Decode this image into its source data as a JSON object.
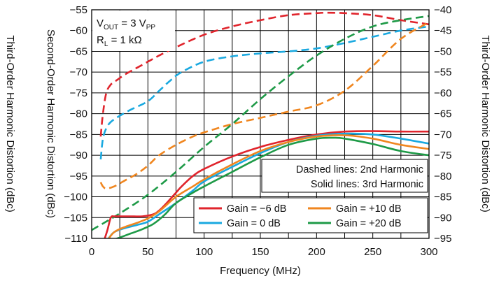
{
  "chart_data": {
    "type": "line",
    "xlabel": "Frequency (MHz)",
    "ylabel_left": "Second-Order Harmonic Distortion (dBc)",
    "ylabel_right_outer": "Third-Order Harmonic Distortion (dBc)",
    "ylabel_left_outer": "Third-Order Harmonic Distortion (dBc)",
    "xlim": [
      0,
      300
    ],
    "ylim_left": [
      -110,
      -55
    ],
    "ylim_right": [
      -95,
      -40
    ],
    "x_ticks": [
      0,
      50,
      100,
      150,
      200,
      250,
      300
    ],
    "x_tick_labels": [
      "0",
      "50",
      "100",
      "150",
      "200",
      "250",
      "300"
    ],
    "y_ticks_left": [
      -55,
      -60,
      -65,
      -70,
      -75,
      -80,
      -85,
      -90,
      -95,
      -100,
      -105,
      -110
    ],
    "y_tick_labels_left": [
      "−55",
      "−60",
      "−65",
      "−70",
      "−75",
      "−80",
      "−85",
      "−90",
      "−95",
      "−100",
      "−105",
      "−110"
    ],
    "y_ticks_right": [
      -40,
      -45,
      -50,
      -55,
      -60,
      -65,
      -70,
      -75,
      -80,
      -85,
      -90,
      -95
    ],
    "y_tick_labels_right": [
      "−40",
      "−45",
      "−50",
      "−55",
      "−60",
      "−65",
      "−70",
      "−75",
      "−80",
      "−85",
      "−90",
      "−95"
    ],
    "grid": true,
    "legend_placement": "bottom-right",
    "conditions": {
      "vout_main": "V",
      "vout_sub": "OUT",
      "vout_val": " = 3 V",
      "vout_unit_sub": "PP",
      "rl_main": "R",
      "rl_sub": "L",
      "rl_val": " = 1 kΩ"
    },
    "line_style_note": [
      "Dashed lines: 2nd Harmonic",
      "Solid lines: 3rd Harmonic"
    ],
    "series": [
      {
        "name": "Gain = −6 dB",
        "color": "#e0242c",
        "harmonic": "2nd",
        "axis": "left",
        "x": [
          8,
          10,
          13,
          17,
          22,
          30,
          40,
          50,
          60,
          75,
          100,
          125,
          150,
          175,
          200,
          210,
          225,
          250,
          275,
          300
        ],
        "y": [
          -85.5,
          -80,
          -75,
          -73,
          -72,
          -70.5,
          -69,
          -67.5,
          -66,
          -64,
          -61,
          -59,
          -57.5,
          -56.3,
          -55.8,
          -55.7,
          -55.8,
          -56.3,
          -57.5,
          -58.5
        ]
      },
      {
        "name": "Gain = 0 dB",
        "color": "#1aa9e0",
        "harmonic": "2nd",
        "axis": "left",
        "x": [
          8,
          10,
          13,
          17,
          25,
          35,
          50,
          60,
          70,
          80,
          100,
          125,
          150,
          175,
          200,
          225,
          250,
          275,
          300
        ],
        "y": [
          -91,
          -86,
          -83.5,
          -82,
          -80.5,
          -79,
          -77,
          -74.5,
          -72,
          -70,
          -67.5,
          -66.2,
          -65.5,
          -65,
          -64.3,
          -63,
          -61.5,
          -60,
          -59
        ]
      },
      {
        "name": "Gain = +10 dB",
        "color": "#f0861f",
        "harmonic": "2nd",
        "axis": "left",
        "x": [
          8,
          10,
          13,
          20,
          30,
          40,
          50,
          60,
          75,
          90,
          100,
          125,
          150,
          175,
          200,
          225,
          250,
          275,
          300
        ],
        "y": [
          -96.5,
          -97.5,
          -98,
          -97.5,
          -96,
          -94.5,
          -92.5,
          -90,
          -87.5,
          -85.5,
          -84.5,
          -82.5,
          -81,
          -79.5,
          -78,
          -74.5,
          -68.5,
          -62,
          -58
        ]
      },
      {
        "name": "Gain = +20 dB",
        "color": "#1e9a47",
        "harmonic": "2nd",
        "axis": "left",
        "x": [
          0,
          25,
          50,
          75,
          100,
          125,
          150,
          175,
          200,
          225,
          250,
          275,
          300
        ],
        "y": [
          -108,
          -104,
          -99.5,
          -94,
          -88,
          -82.5,
          -76.5,
          -71,
          -66,
          -62,
          -59,
          -57.5,
          -56.5
        ]
      },
      {
        "name": "Gain = −6 dB",
        "color": "#e0242c",
        "harmonic": "3rd",
        "axis": "right",
        "x": [
          11,
          14,
          17,
          20,
          25,
          30,
          35,
          45,
          55,
          60,
          65,
          70,
          75,
          80,
          90,
          100,
          125,
          150,
          175,
          200,
          225,
          250,
          275,
          300
        ],
        "y": [
          -95.5,
          -93,
          -90,
          -89.7,
          -89.7,
          -89.7,
          -89.7,
          -89.7,
          -89.2,
          -88.3,
          -87,
          -85.5,
          -84,
          -82.5,
          -80,
          -78.3,
          -75.3,
          -73,
          -71.3,
          -70,
          -69.3,
          -69.2,
          -69.3,
          -69.3
        ]
      },
      {
        "name": "Gain = 0 dB",
        "color": "#1aa9e0",
        "harmonic": "3rd",
        "axis": "right",
        "x": [
          12,
          15,
          20,
          30,
          40,
          50,
          60,
          75,
          90,
          100,
          125,
          150,
          175,
          200,
          225,
          250,
          275,
          300
        ],
        "y": [
          -95.5,
          -95,
          -93.5,
          -92.5,
          -91.8,
          -91,
          -89.2,
          -86.5,
          -83.5,
          -81.3,
          -77.8,
          -74.5,
          -71.8,
          -70.3,
          -69.8,
          -70,
          -71,
          -72.2
        ]
      },
      {
        "name": "Gain = +10 dB",
        "color": "#f0861f",
        "harmonic": "3rd",
        "axis": "right",
        "x": [
          14,
          20,
          30,
          40,
          50,
          60,
          75,
          90,
          100,
          125,
          150,
          175,
          200,
          225,
          250,
          275,
          300
        ],
        "y": [
          -95.5,
          -93.5,
          -92.2,
          -91.3,
          -90.2,
          -88.5,
          -85,
          -82.5,
          -80.8,
          -77.2,
          -74,
          -71.8,
          -70.5,
          -70.2,
          -71,
          -72.5,
          -73.5
        ]
      },
      {
        "name": "Gain = +20 dB",
        "color": "#1e9a47",
        "harmonic": "3rd",
        "axis": "right",
        "x": [
          17,
          25,
          35,
          45,
          55,
          65,
          75,
          90,
          100,
          125,
          150,
          175,
          200,
          215,
          225,
          250,
          275,
          300
        ],
        "y": [
          -95.5,
          -94.8,
          -93.8,
          -92.8,
          -91.5,
          -89.3,
          -86.5,
          -84,
          -82.5,
          -79,
          -75.5,
          -72.5,
          -71,
          -70.8,
          -71,
          -72.3,
          -74,
          -75
        ]
      }
    ],
    "legend": [
      {
        "label": "Gain = −6 dB",
        "color": "#e0242c"
      },
      {
        "label": "Gain = +10 dB",
        "color": "#f0861f"
      },
      {
        "label": "Gain = 0 dB",
        "color": "#1aa9e0"
      },
      {
        "label": "Gain = +20 dB",
        "color": "#1e9a47"
      }
    ]
  }
}
